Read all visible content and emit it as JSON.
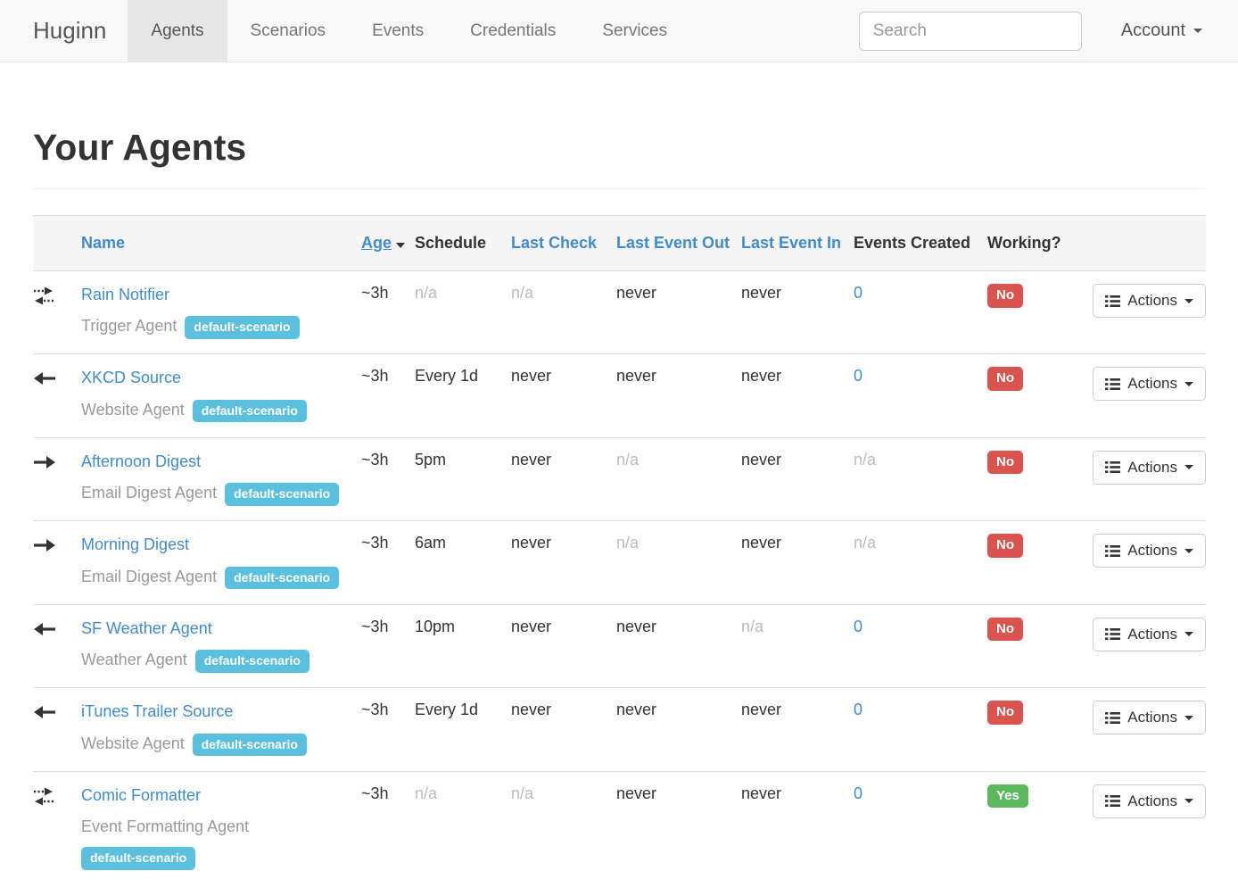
{
  "navbar": {
    "brand": "Huginn",
    "items": [
      {
        "label": "Agents",
        "active": true
      },
      {
        "label": "Scenarios",
        "active": false
      },
      {
        "label": "Events",
        "active": false
      },
      {
        "label": "Credentials",
        "active": false
      },
      {
        "label": "Services",
        "active": false
      }
    ],
    "search": {
      "placeholder": "Search"
    },
    "account_label": "Account"
  },
  "page": {
    "title": "Your Agents"
  },
  "table": {
    "headers": {
      "name": "Name",
      "age": "Age",
      "schedule": "Schedule",
      "last_check": "Last Check",
      "last_event_out": "Last Event Out",
      "last_event_in": "Last Event In",
      "events_created": "Events Created",
      "working": "Working?"
    },
    "actions_label": "Actions",
    "rows": [
      {
        "direction": "both",
        "name": "Rain Notifier",
        "type": "Trigger Agent",
        "scenario": "default-scenario",
        "age": "~3h",
        "schedule": "n/a",
        "last_check": "n/a",
        "last_event_out": "never",
        "last_event_in": "never",
        "events_created": "0",
        "working": "No"
      },
      {
        "direction": "left",
        "name": "XKCD Source",
        "type": "Website Agent",
        "scenario": "default-scenario",
        "age": "~3h",
        "schedule": "Every 1d",
        "last_check": "never",
        "last_event_out": "never",
        "last_event_in": "never",
        "events_created": "0",
        "working": "No"
      },
      {
        "direction": "right",
        "name": "Afternoon Digest",
        "type": "Email Digest Agent",
        "scenario": "default-scenario",
        "age": "~3h",
        "schedule": "5pm",
        "last_check": "never",
        "last_event_out": "n/a",
        "last_event_in": "never",
        "events_created": "n/a",
        "working": "No"
      },
      {
        "direction": "right",
        "name": "Morning Digest",
        "type": "Email Digest Agent",
        "scenario": "default-scenario",
        "age": "~3h",
        "schedule": "6am",
        "last_check": "never",
        "last_event_out": "n/a",
        "last_event_in": "never",
        "events_created": "n/a",
        "working": "No"
      },
      {
        "direction": "left",
        "name": "SF Weather Agent",
        "type": "Weather Agent",
        "scenario": "default-scenario",
        "age": "~3h",
        "schedule": "10pm",
        "last_check": "never",
        "last_event_out": "never",
        "last_event_in": "n/a",
        "events_created": "0",
        "working": "No"
      },
      {
        "direction": "left",
        "name": "iTunes Trailer Source",
        "type": "Website Agent",
        "scenario": "default-scenario",
        "age": "~3h",
        "schedule": "Every 1d",
        "last_check": "never",
        "last_event_out": "never",
        "last_event_in": "never",
        "events_created": "0",
        "working": "No"
      },
      {
        "direction": "both",
        "name": "Comic Formatter",
        "type": "Event Formatting Agent",
        "scenario": "default-scenario",
        "age": "~3h",
        "schedule": "n/a",
        "last_check": "n/a",
        "last_event_out": "never",
        "last_event_in": "never",
        "events_created": "0",
        "working": "Yes"
      }
    ]
  },
  "colors": {
    "link_blue": "#428bca",
    "badge_blue": "#5bc0de",
    "status_no": "#d9534f",
    "status_yes": "#5cb85c",
    "muted": "#bbbbbb"
  }
}
